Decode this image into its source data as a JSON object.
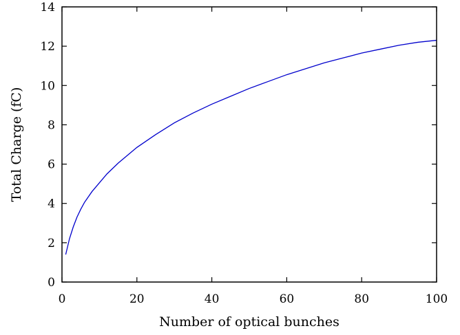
{
  "chart_data": {
    "type": "line",
    "title": "",
    "xlabel": "Number of optical bunches",
    "ylabel": "Total Charge (fC)",
    "xlim": [
      0,
      100
    ],
    "ylim": [
      0,
      14
    ],
    "xticks": [
      0,
      20,
      40,
      60,
      80,
      100
    ],
    "yticks": [
      0,
      2,
      4,
      6,
      8,
      10,
      12,
      14
    ],
    "grid": false,
    "legend": "none",
    "series": [
      {
        "color": "#0000cc",
        "x": [
          1,
          2,
          3,
          4,
          5,
          6,
          8,
          10,
          12,
          15,
          20,
          25,
          30,
          35,
          40,
          45,
          50,
          55,
          60,
          65,
          70,
          75,
          80,
          85,
          90,
          95,
          100
        ],
        "y": [
          1.4,
          2.2,
          2.8,
          3.3,
          3.7,
          4.05,
          4.6,
          5.05,
          5.5,
          6.05,
          6.85,
          7.5,
          8.1,
          8.6,
          9.05,
          9.45,
          9.85,
          10.2,
          10.55,
          10.85,
          11.15,
          11.4,
          11.65,
          11.85,
          12.05,
          12.2,
          12.3
        ]
      }
    ]
  }
}
